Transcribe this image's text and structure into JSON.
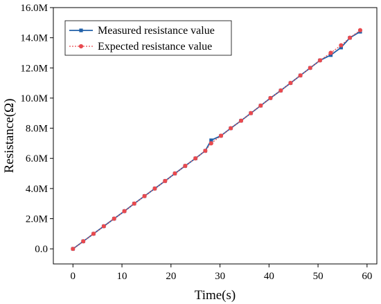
{
  "chart_data": {
    "type": "line",
    "title": "",
    "xlabel": "Time(s)",
    "ylabel": "Resistance(Ω)",
    "xlim": [
      -4,
      62
    ],
    "ylim": [
      -1.0,
      16.0
    ],
    "xticks": [
      0,
      10,
      20,
      30,
      40,
      50,
      60
    ],
    "xtick_labels": [
      "0",
      "10",
      "20",
      "30",
      "40",
      "50",
      "60"
    ],
    "yticks": [
      0,
      2,
      4,
      6,
      8,
      10,
      12,
      14,
      16
    ],
    "ytick_labels": [
      "0.0",
      "2.0M",
      "4.0M",
      "6.0M",
      "8.0M",
      "10.0M",
      "12.0M",
      "14.0M",
      "16.0M"
    ],
    "y_unit": "M",
    "grid": false,
    "legend_position": "top-left",
    "series": [
      {
        "name": "Measured resistance value",
        "color": "#1f5fa8",
        "marker": "square",
        "line_style": "solid",
        "x": [
          0,
          2.1,
          4.2,
          6.3,
          8.4,
          10.5,
          12.5,
          14.6,
          16.7,
          18.8,
          20.8,
          22.9,
          25,
          27,
          28.2,
          30.2,
          32.2,
          34.3,
          36.3,
          38.3,
          40.3,
          42.4,
          44.4,
          46.4,
          48.4,
          50.4,
          52.6,
          54.7,
          56.5,
          58.6
        ],
        "y": [
          0,
          0.5,
          1.0,
          1.5,
          2.0,
          2.5,
          3.0,
          3.5,
          4.0,
          4.5,
          5.0,
          5.5,
          6.0,
          6.5,
          7.2,
          7.5,
          8.0,
          8.5,
          9.0,
          9.5,
          10.0,
          10.5,
          11.0,
          11.5,
          12.0,
          12.5,
          12.85,
          13.35,
          14.0,
          14.4
        ]
      },
      {
        "name": "Expected resistance value",
        "color": "#e84a4f",
        "marker": "circle",
        "line_style": "dotted",
        "x": [
          0,
          2.1,
          4.2,
          6.3,
          8.4,
          10.5,
          12.5,
          14.6,
          16.7,
          18.8,
          20.8,
          22.9,
          25,
          27,
          28.2,
          30.2,
          32.2,
          34.3,
          36.3,
          38.3,
          40.3,
          42.4,
          44.4,
          46.4,
          48.4,
          50.4,
          52.6,
          54.7,
          56.5,
          58.6
        ],
        "y": [
          0,
          0.5,
          1.0,
          1.5,
          2.0,
          2.5,
          3.0,
          3.5,
          4.0,
          4.5,
          5.0,
          5.5,
          6.0,
          6.5,
          7.0,
          7.5,
          8.0,
          8.5,
          9.0,
          9.5,
          10.0,
          10.5,
          11.0,
          11.5,
          12.0,
          12.5,
          13.0,
          13.5,
          14.0,
          14.5
        ]
      }
    ]
  }
}
